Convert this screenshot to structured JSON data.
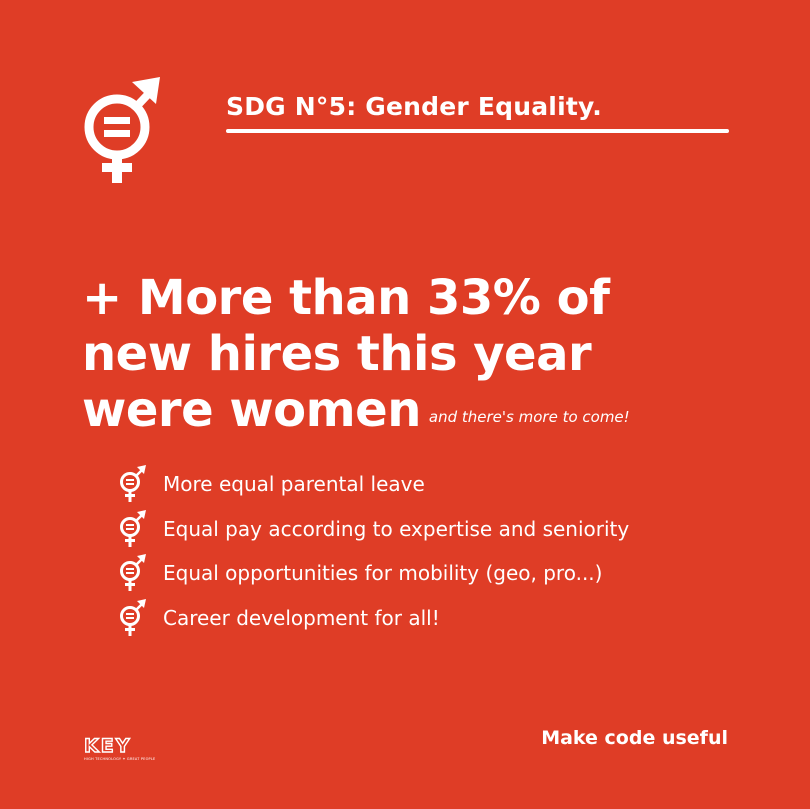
{
  "header": {
    "title": "SDG N°5: Gender Equality.",
    "icon": "gender-equality-icon"
  },
  "headline": {
    "line1": "+ More than 33% of",
    "line2": "new hires this year",
    "line3": "were women",
    "tagline": "and there's more to come!"
  },
  "bullets": [
    {
      "icon": "gender-equality-icon",
      "text": "More equal parental leave"
    },
    {
      "icon": "gender-equality-icon",
      "text": "Equal pay according to expertise and seniority"
    },
    {
      "icon": "gender-equality-icon",
      "text": "Equal opportunities for mobility (geo, pro...)"
    },
    {
      "icon": "gender-equality-icon",
      "text": "Career development for all!"
    }
  ],
  "footer": {
    "logo_text": "KEY",
    "logo_subtext": "HIGH TECHNOLOGY ✦ GREAT PEOPLE",
    "tagline": "Make code useful"
  },
  "colors": {
    "background": "#df3d26",
    "foreground": "#ffffff"
  }
}
